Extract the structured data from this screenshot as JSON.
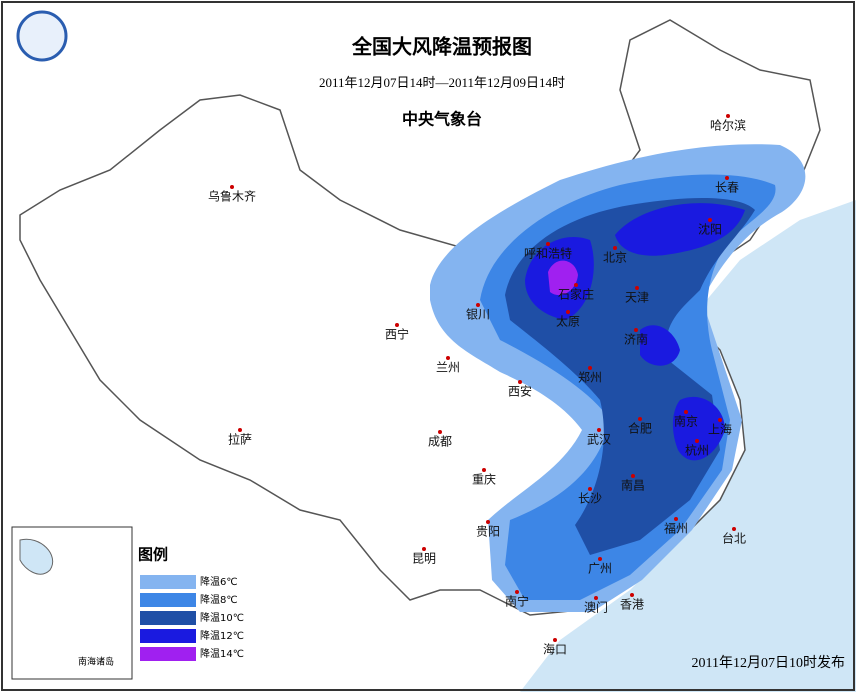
{
  "header": {
    "title": "全国大风降温预报图",
    "subtitle": "2011年12月07日14时—2011年12月09日14时",
    "issuer": "中央气象台"
  },
  "cities": [
    "乌鲁木齐",
    "哈尔滨",
    "长春",
    "沈阳",
    "呼和浩特",
    "北京",
    "石家庄",
    "天津",
    "银川",
    "太原",
    "济南",
    "西宁",
    "兰州",
    "西安",
    "郑州",
    "南京",
    "上海",
    "合肥",
    "杭州",
    "拉萨",
    "成都",
    "武汉",
    "重庆",
    "南昌",
    "长沙",
    "福州",
    "台北",
    "贵阳",
    "昆明",
    "广州",
    "南宁",
    "澳门",
    "香港",
    "海口"
  ],
  "legend": {
    "title": "图例",
    "items": [
      {
        "label": "降温6℃",
        "color": "#84b4f0"
      },
      {
        "label": "降温8℃",
        "color": "#3d86e6"
      },
      {
        "label": "降温10℃",
        "color": "#1f4fa6"
      },
      {
        "label": "降温12℃",
        "color": "#1a1ae0"
      },
      {
        "label": "降温14℃",
        "color": "#a020f0"
      }
    ]
  },
  "inset": {
    "label": "南海诸岛"
  },
  "footer": "2011年12月07日10时发布"
}
